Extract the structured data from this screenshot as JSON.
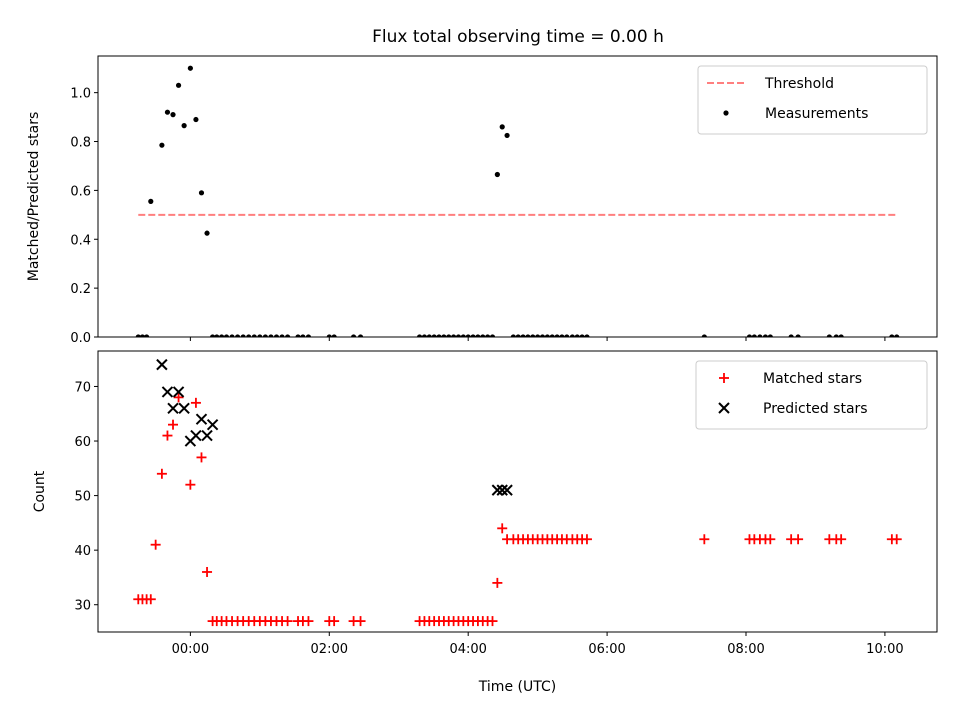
{
  "title": "Flux total observing time = 0.00 h",
  "chart_data": [
    {
      "type": "scatter",
      "ylabel": "Matched/Predicted stars",
      "ylim": [
        0,
        1.15
      ],
      "xlim": [
        -1.33,
        10.75
      ],
      "yticks": [
        0.0,
        0.2,
        0.4,
        0.6,
        0.8,
        1.0
      ],
      "ytick_labels": [
        "0.0",
        "0.2",
        "0.4",
        "0.6",
        "0.8",
        "1.0"
      ],
      "legend_position": "top-right",
      "threshold": {
        "name": "Threshold",
        "value": 0.5,
        "x_range": [
          -0.75,
          10.15
        ],
        "color": "#ff7f7f"
      },
      "series": [
        {
          "name": "Measurements",
          "color": "#000000",
          "marker": "dot",
          "x": [
            -0.75,
            -0.69,
            -0.63,
            -0.57,
            -0.41,
            -0.33,
            -0.25,
            -0.17,
            -0.09,
            0.0,
            0.08,
            0.16,
            0.24,
            0.32,
            0.38,
            0.45,
            0.52,
            0.6,
            0.68,
            0.76,
            0.84,
            0.92,
            1.0,
            1.08,
            1.16,
            1.24,
            1.32,
            1.4,
            1.55,
            1.62,
            1.7,
            2.0,
            2.07,
            2.35,
            2.45,
            3.3,
            3.37,
            3.44,
            3.51,
            3.58,
            3.65,
            3.72,
            3.79,
            3.86,
            3.93,
            4.0,
            4.07,
            4.14,
            4.21,
            4.28,
            4.35,
            4.42,
            4.49,
            4.56,
            4.65,
            4.72,
            4.79,
            4.86,
            4.93,
            5.0,
            5.07,
            5.14,
            5.21,
            5.28,
            5.35,
            5.42,
            5.5,
            5.57,
            5.64,
            5.71,
            7.4,
            8.05,
            8.12,
            8.2,
            8.28,
            8.35,
            8.65,
            8.75,
            9.2,
            9.3,
            9.37,
            10.1,
            10.17
          ],
          "y": [
            0,
            0,
            0,
            0.555,
            0.785,
            0.92,
            0.91,
            1.03,
            0.865,
            1.1,
            0.89,
            0.59,
            0.425,
            0,
            0,
            0,
            0,
            0,
            0,
            0,
            0,
            0,
            0,
            0,
            0,
            0,
            0,
            0,
            0,
            0,
            0,
            0,
            0,
            0,
            0,
            0,
            0,
            0,
            0,
            0,
            0,
            0,
            0,
            0,
            0,
            0,
            0,
            0,
            0,
            0,
            0,
            0.665,
            0.86,
            0.825,
            0,
            0,
            0,
            0,
            0,
            0,
            0,
            0,
            0,
            0,
            0,
            0,
            0,
            0,
            0,
            0,
            0,
            0,
            0,
            0,
            0,
            0,
            0,
            0,
            0,
            0,
            0,
            0,
            0
          ]
        }
      ]
    },
    {
      "type": "scatter",
      "ylabel": "Count",
      "xlabel": "Time (UTC)",
      "ylim": [
        25,
        76.5
      ],
      "xlim": [
        -1.33,
        10.75
      ],
      "yticks": [
        30,
        40,
        50,
        60,
        70
      ],
      "ytick_labels": [
        "30",
        "40",
        "50",
        "60",
        "70"
      ],
      "xticks": [
        0,
        2,
        4,
        6,
        8,
        10
      ],
      "xtick_labels": [
        "00:00",
        "02:00",
        "04:00",
        "06:00",
        "08:00",
        "10:00"
      ],
      "legend_position": "top-right",
      "series": [
        {
          "name": "Matched stars",
          "color": "#ff0000",
          "marker": "plus",
          "x": [
            -0.75,
            -0.69,
            -0.63,
            -0.57,
            -0.5,
            -0.41,
            -0.33,
            -0.25,
            -0.17,
            0.0,
            0.08,
            0.16,
            0.24,
            0.32,
            0.38,
            0.45,
            0.52,
            0.6,
            0.68,
            0.76,
            0.84,
            0.92,
            1.0,
            1.08,
            1.16,
            1.24,
            1.32,
            1.4,
            1.55,
            1.62,
            1.7,
            2.0,
            2.07,
            2.35,
            2.45,
            3.3,
            3.37,
            3.44,
            3.51,
            3.58,
            3.65,
            3.72,
            3.79,
            3.86,
            3.93,
            4.0,
            4.07,
            4.14,
            4.21,
            4.28,
            4.35,
            4.42,
            4.49,
            4.56,
            4.65,
            4.72,
            4.79,
            4.86,
            4.93,
            5.0,
            5.07,
            5.14,
            5.21,
            5.28,
            5.35,
            5.42,
            5.5,
            5.57,
            5.64,
            5.71,
            7.4,
            8.05,
            8.12,
            8.2,
            8.28,
            8.35,
            8.65,
            8.75,
            9.2,
            9.3,
            9.37,
            10.1,
            10.17
          ],
          "y": [
            31,
            31,
            31,
            31,
            41,
            54,
            61,
            63,
            68,
            52,
            67,
            57,
            36,
            27,
            27,
            27,
            27,
            27,
            27,
            27,
            27,
            27,
            27,
            27,
            27,
            27,
            27,
            27,
            27,
            27,
            27,
            27,
            27,
            27,
            27,
            27,
            27,
            27,
            27,
            27,
            27,
            27,
            27,
            27,
            27,
            27,
            27,
            27,
            27,
            27,
            27,
            34,
            44,
            42,
            42,
            42,
            42,
            42,
            42,
            42,
            42,
            42,
            42,
            42,
            42,
            42,
            42,
            42,
            42,
            42,
            42,
            42,
            42,
            42,
            42,
            42,
            42,
            42,
            42,
            42,
            42,
            42,
            42
          ]
        },
        {
          "name": "Predicted stars",
          "color": "#000000",
          "marker": "x",
          "x": [
            -0.41,
            -0.33,
            -0.25,
            -0.17,
            -0.09,
            0.0,
            0.08,
            0.16,
            0.24,
            0.32,
            4.42,
            4.49,
            4.56
          ],
          "y": [
            74,
            69,
            66,
            69,
            66,
            60,
            61,
            64,
            61,
            63,
            51,
            51,
            51
          ]
        }
      ]
    }
  ]
}
